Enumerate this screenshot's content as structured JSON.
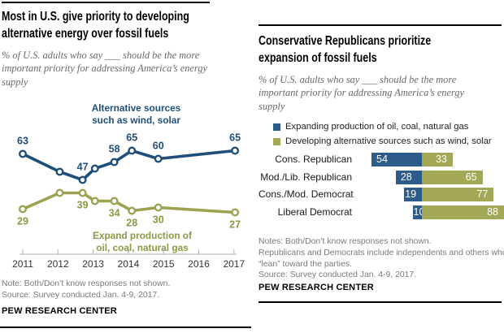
{
  "left_panel": {
    "title": "Most in U.S. give priority to developing\nalternative energy over fossil fuels",
    "subtitle": "% of U.S. adults who say ___ should be the more\nimportant priority for addressing America’s energy\nsupply",
    "annotation_alternative": "Alternative sources\nsuch as wind, solar",
    "annotation_fossil": "Expand production of\noil, coal, natural gas",
    "notes": "Note: Both/Don’t know responses not shown.\nSource: Survey conducted Jan. 4-9, 2017.",
    "brand": "PEW RESEARCH CENTER"
  },
  "right_panel": {
    "title": "Conservative Republicans prioritize\nexpansion of fossil fuels",
    "subtitle": "% of U.S. adults who say ___ should be the more\nimportant priority for addressing America’s energy\nsupply",
    "notes": "Notes: Both/Don’t know responses not shown.\nRepublicans and Democrats include independents and others who\n“lean” toward the parties.\nSource: Survey conducted Jan. 4-9, 2017.",
    "brand": "PEW RESEARCH CENTER"
  },
  "colors": {
    "alt_line": "#1f4e79",
    "alt_label": "#1f4e79",
    "fossil_line": "#9ca24f",
    "fossil_label": "#8f9747",
    "bar_blue": "#2d5c8a",
    "bar_green": "#a3a857",
    "axis": "#b0b0b0",
    "tick_text": "#333333"
  },
  "chart_data": [
    {
      "type": "line",
      "title": "Most in U.S. give priority to developing alternative energy over fossil fuels",
      "x_tick_labels": [
        "2011",
        "2012",
        "2013",
        "2014",
        "2015",
        "2016",
        "2017"
      ],
      "x": [
        2011,
        2012.05,
        2012.7,
        2013.05,
        2013.6,
        2014.1,
        2014.85,
        2017.03
      ],
      "series": [
        {
          "name": "Alternative sources such as wind, solar",
          "values": [
            63,
            52,
            47,
            54,
            58,
            65,
            60,
            65
          ],
          "point_labels": [
            "63",
            "",
            "47",
            "",
            "58",
            "65",
            "60",
            "65"
          ],
          "label_side": "above",
          "color_key": "alt"
        },
        {
          "name": "Expand production of oil, coal, natural gas",
          "values": [
            29,
            39,
            39,
            34,
            34,
            28,
            30,
            27
          ],
          "point_labels": [
            "29",
            "",
            "39",
            "",
            "34",
            "28",
            "30",
            "27"
          ],
          "label_side": "below",
          "color_key": "fossil"
        }
      ],
      "ylim": [
        20,
        75
      ],
      "grid": false,
      "y_axis_shown": false
    },
    {
      "type": "bar",
      "orientation": "horizontal-stacked",
      "title": "Conservative Republicans prioritize expansion of fossil fuels",
      "categories": [
        "Cons. Republican",
        "Mod./Lib. Republican",
        "Cons./Mod. Democrat",
        "Liberal Democrat"
      ],
      "series": [
        {
          "name": "Expanding production of oil, coal, natural gas",
          "values": [
            54,
            28,
            19,
            10
          ],
          "color_key": "bar_blue"
        },
        {
          "name": "Developing alternative sources such as wind, solar",
          "values": [
            33,
            65,
            77,
            88
          ],
          "color_key": "bar_green"
        }
      ],
      "legend_position": "top",
      "value_labels": "inside"
    }
  ]
}
